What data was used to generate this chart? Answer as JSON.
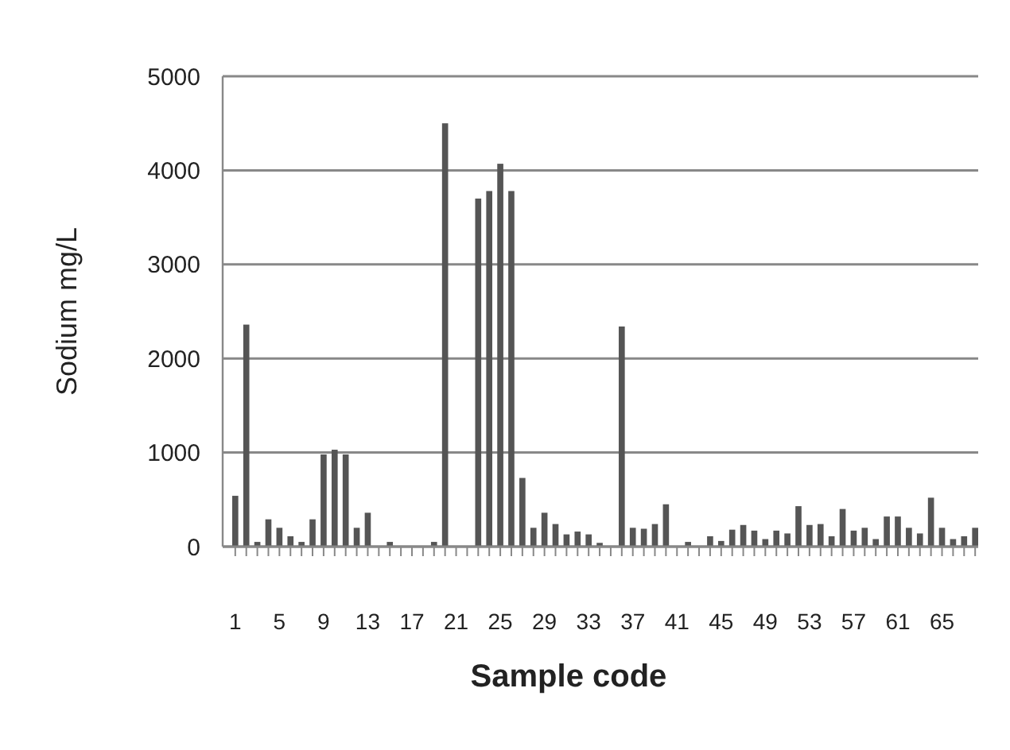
{
  "chart_data": {
    "type": "bar",
    "xlabel": "Sample code",
    "ylabel": "Sodium mg/L",
    "categories": [
      "1",
      null,
      null,
      null,
      "5",
      null,
      null,
      null,
      "9",
      null,
      null,
      null,
      "13",
      null,
      null,
      null,
      "17",
      null,
      null,
      null,
      "21",
      null,
      null,
      null,
      "25",
      null,
      null,
      null,
      "29",
      null,
      null,
      null,
      "33",
      null,
      null,
      null,
      "37",
      null,
      null,
      null,
      "41",
      null,
      null,
      null,
      "45",
      null,
      null,
      null,
      "49",
      null,
      null,
      null,
      "53",
      null,
      null,
      null,
      "57",
      null,
      null,
      null,
      "61",
      null,
      null,
      null,
      "65",
      null,
      null,
      null
    ],
    "values": [
      540,
      2360,
      50,
      290,
      200,
      110,
      50,
      290,
      980,
      1030,
      980,
      200,
      360,
      0,
      50,
      0,
      0,
      0,
      50,
      4500,
      0,
      0,
      3700,
      3780,
      4070,
      3780,
      730,
      200,
      360,
      240,
      130,
      160,
      130,
      40,
      0,
      2340,
      200,
      190,
      240,
      450,
      0,
      50,
      0,
      110,
      60,
      180,
      230,
      170,
      80,
      170,
      140,
      430,
      230,
      240,
      110,
      400,
      170,
      200,
      80,
      320,
      320,
      200,
      140,
      520,
      200,
      80,
      110,
      200
    ],
    "color": "#555555",
    "ylim": [
      0,
      5000
    ],
    "yticks": [
      0,
      1000,
      2000,
      3000,
      4000,
      5000
    ],
    "grid": "y"
  }
}
